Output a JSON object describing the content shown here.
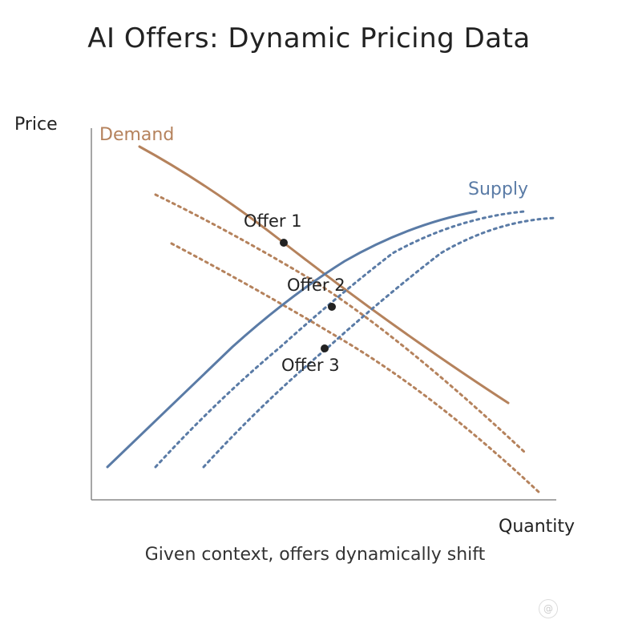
{
  "title": "AI Offers: Dynamic Pricing Data",
  "caption": "Given context, offers dynamically shift",
  "axes": {
    "y_label": "Price",
    "x_label": "Quantity"
  },
  "curves": {
    "demand_label": "Demand",
    "supply_label": "Supply",
    "demand_color": "#b5825c",
    "supply_color": "#5a7ba6"
  },
  "offers": [
    {
      "label": "Offer 1"
    },
    {
      "label": "Offer 2"
    },
    {
      "label": "Offer 3"
    }
  ],
  "watermark": "@"
}
